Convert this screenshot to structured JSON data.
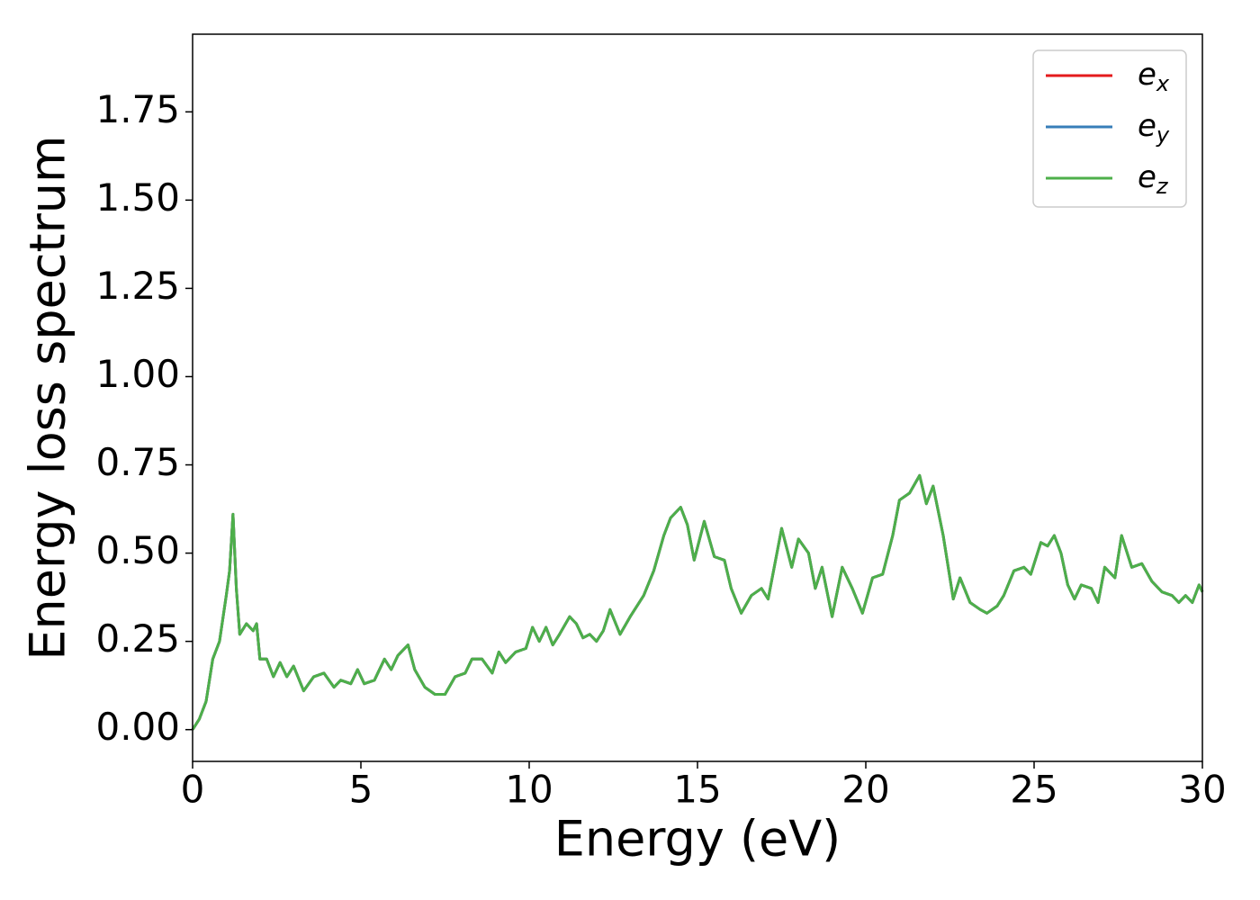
{
  "chart_data": {
    "type": "line",
    "xlabel": "Energy (eV)",
    "ylabel": "Energy loss spectrum",
    "xlim": [
      0,
      30
    ],
    "xticks": [
      0,
      5,
      10,
      15,
      20,
      25,
      30
    ],
    "ylim": [
      -0.09,
      1.97
    ],
    "yticks": [
      {
        "value": 0,
        "label": "0.00"
      },
      {
        "value": 0.25,
        "label": "0.25"
      },
      {
        "value": 0.5,
        "label": "0.50"
      },
      {
        "value": 0.75,
        "label": "0.75"
      },
      {
        "value": 1.0,
        "label": "1.00"
      },
      {
        "value": 1.25,
        "label": "1.25"
      },
      {
        "value": 1.5,
        "label": "1.50"
      },
      {
        "value": 1.75,
        "label": "1.75"
      }
    ],
    "legend": "upper right",
    "x": [
      0,
      0.2,
      0.4,
      0.6,
      0.8,
      1.0,
      1.1,
      1.2,
      1.3,
      1.4,
      1.6,
      1.8,
      1.9,
      2.0,
      2.2,
      2.4,
      2.6,
      2.8,
      3.0,
      3.3,
      3.6,
      3.9,
      4.2,
      4.4,
      4.7,
      4.9,
      5.1,
      5.4,
      5.7,
      5.9,
      6.1,
      6.4,
      6.6,
      6.9,
      7.2,
      7.5,
      7.8,
      8.1,
      8.3,
      8.6,
      8.9,
      9.1,
      9.3,
      9.6,
      9.9,
      10.1,
      10.3,
      10.5,
      10.7,
      10.9,
      11.2,
      11.4,
      11.6,
      11.8,
      12.0,
      12.2,
      12.4,
      12.7,
      13.0,
      13.4,
      13.7,
      14.0,
      14.2,
      14.5,
      14.7,
      14.9,
      15.2,
      15.5,
      15.8,
      16.0,
      16.3,
      16.6,
      16.9,
      17.1,
      17.5,
      17.8,
      18.0,
      18.3,
      18.5,
      18.7,
      19.0,
      19.3,
      19.6,
      19.9,
      20.2,
      20.5,
      20.8,
      21.0,
      21.3,
      21.6,
      21.8,
      22.0,
      22.3,
      22.6,
      22.8,
      23.1,
      23.4,
      23.6,
      23.9,
      24.1,
      24.4,
      24.7,
      24.9,
      25.2,
      25.4,
      25.6,
      25.8,
      26.0,
      26.2,
      26.4,
      26.7,
      26.9,
      27.1,
      27.4,
      27.6,
      27.9,
      28.2,
      28.5,
      28.8,
      29.1,
      29.3,
      29.5,
      29.7,
      29.9,
      30.0
    ],
    "series": [
      {
        "name": "ex",
        "color": "#e41a1c",
        "values": [
          0.0,
          0.03,
          0.08,
          0.2,
          0.25,
          0.38,
          0.45,
          0.61,
          0.4,
          0.27,
          0.3,
          0.28,
          0.3,
          0.2,
          0.2,
          0.15,
          0.19,
          0.15,
          0.18,
          0.11,
          0.15,
          0.16,
          0.12,
          0.14,
          0.13,
          0.17,
          0.13,
          0.14,
          0.2,
          0.17,
          0.21,
          0.24,
          0.17,
          0.12,
          0.1,
          0.1,
          0.15,
          0.16,
          0.2,
          0.2,
          0.16,
          0.22,
          0.19,
          0.22,
          0.23,
          0.29,
          0.25,
          0.29,
          0.24,
          0.27,
          0.32,
          0.3,
          0.26,
          0.27,
          0.25,
          0.28,
          0.34,
          0.27,
          0.32,
          0.38,
          0.45,
          0.55,
          0.6,
          0.63,
          0.58,
          0.48,
          0.59,
          0.49,
          0.48,
          0.4,
          0.33,
          0.38,
          0.4,
          0.37,
          0.57,
          0.46,
          0.54,
          0.5,
          0.4,
          0.46,
          0.32,
          0.46,
          0.4,
          0.33,
          0.43,
          0.44,
          0.55,
          0.65,
          0.67,
          0.72,
          0.64,
          0.69,
          0.55,
          0.37,
          0.43,
          0.36,
          0.34,
          0.33,
          0.35,
          0.38,
          0.45,
          0.46,
          0.44,
          0.53,
          0.52,
          0.55,
          0.5,
          0.41,
          0.37,
          0.41,
          0.4,
          0.36,
          0.46,
          0.43,
          0.55,
          0.46,
          0.47,
          0.42,
          0.39,
          0.38,
          0.36,
          0.38,
          0.36,
          0.41,
          0.39
        ]
      },
      {
        "name": "ey",
        "color": "#377eb8",
        "values": [
          0.0,
          0.03,
          0.08,
          0.2,
          0.25,
          0.38,
          0.45,
          0.61,
          0.4,
          0.27,
          0.3,
          0.28,
          0.3,
          0.2,
          0.2,
          0.15,
          0.19,
          0.15,
          0.18,
          0.11,
          0.15,
          0.16,
          0.12,
          0.14,
          0.13,
          0.17,
          0.13,
          0.14,
          0.2,
          0.17,
          0.21,
          0.24,
          0.17,
          0.12,
          0.1,
          0.1,
          0.15,
          0.16,
          0.2,
          0.2,
          0.16,
          0.22,
          0.19,
          0.22,
          0.23,
          0.29,
          0.25,
          0.29,
          0.24,
          0.27,
          0.32,
          0.3,
          0.26,
          0.27,
          0.25,
          0.28,
          0.34,
          0.27,
          0.32,
          0.38,
          0.45,
          0.55,
          0.6,
          0.63,
          0.58,
          0.48,
          0.59,
          0.49,
          0.48,
          0.4,
          0.33,
          0.38,
          0.4,
          0.37,
          0.57,
          0.46,
          0.54,
          0.5,
          0.4,
          0.46,
          0.32,
          0.46,
          0.4,
          0.33,
          0.43,
          0.44,
          0.55,
          0.65,
          0.67,
          0.72,
          0.64,
          0.69,
          0.55,
          0.37,
          0.43,
          0.36,
          0.34,
          0.33,
          0.35,
          0.38,
          0.45,
          0.46,
          0.44,
          0.53,
          0.52,
          0.55,
          0.5,
          0.41,
          0.37,
          0.41,
          0.4,
          0.36,
          0.46,
          0.43,
          0.55,
          0.46,
          0.47,
          0.42,
          0.39,
          0.38,
          0.36,
          0.38,
          0.36,
          0.41,
          0.39
        ]
      },
      {
        "name": "ez",
        "color": "#4daf4a",
        "values": [
          0.0,
          0.03,
          0.08,
          0.2,
          0.25,
          0.38,
          0.45,
          0.61,
          0.4,
          0.27,
          0.3,
          0.28,
          0.3,
          0.2,
          0.2,
          0.15,
          0.19,
          0.15,
          0.18,
          0.11,
          0.15,
          0.16,
          0.12,
          0.14,
          0.13,
          0.17,
          0.13,
          0.14,
          0.2,
          0.17,
          0.21,
          0.24,
          0.17,
          0.12,
          0.1,
          0.1,
          0.15,
          0.16,
          0.2,
          0.2,
          0.16,
          0.22,
          0.19,
          0.22,
          0.23,
          0.29,
          0.25,
          0.29,
          0.24,
          0.27,
          0.32,
          0.3,
          0.26,
          0.27,
          0.25,
          0.28,
          0.34,
          0.27,
          0.32,
          0.38,
          0.45,
          0.55,
          0.6,
          0.63,
          0.58,
          0.48,
          0.59,
          0.49,
          0.48,
          0.4,
          0.33,
          0.38,
          0.4,
          0.37,
          0.57,
          0.46,
          0.54,
          0.5,
          0.4,
          0.46,
          0.32,
          0.46,
          0.4,
          0.33,
          0.43,
          0.44,
          0.55,
          0.65,
          0.67,
          0.72,
          0.64,
          0.69,
          0.55,
          0.37,
          0.43,
          0.36,
          0.34,
          0.33,
          0.35,
          0.38,
          0.45,
          0.46,
          0.44,
          0.53,
          0.52,
          0.55,
          0.5,
          0.41,
          0.37,
          0.41,
          0.4,
          0.36,
          0.46,
          0.43,
          0.55,
          0.46,
          0.47,
          0.42,
          0.39,
          0.38,
          0.36,
          0.38,
          0.36,
          0.41,
          0.39
        ]
      }
    ]
  }
}
